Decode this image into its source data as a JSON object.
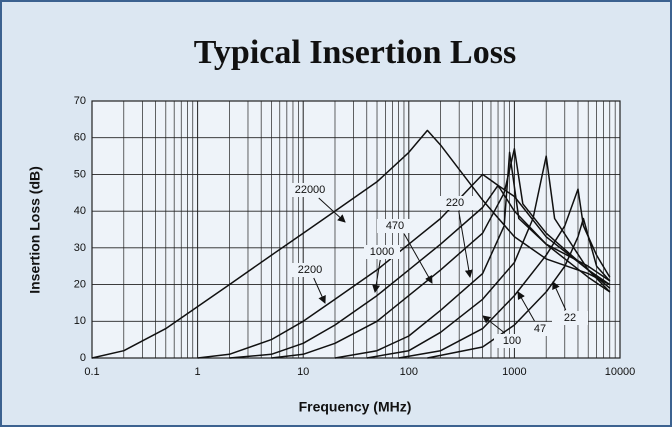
{
  "chart_data": {
    "type": "line",
    "title": "Typical Insertion Loss",
    "x_label": "Frequency (MHz)",
    "y_label": "Insertion Loss (dB)",
    "xscale": "log",
    "grid": true,
    "xlim": [
      0.1,
      10000
    ],
    "xticks": [
      0.1,
      1,
      10,
      100,
      1000,
      10000
    ],
    "ylim": [
      0,
      70
    ],
    "yticks": [
      0,
      10,
      20,
      30,
      40,
      50,
      60,
      70
    ],
    "series": [
      {
        "name": "22000",
        "color": "#111111",
        "x": [
          0.1,
          0.2,
          0.5,
          1,
          2,
          5,
          10,
          20,
          50,
          100,
          150,
          200,
          500,
          1000,
          2000,
          5000,
          8000
        ],
        "values": [
          0,
          2,
          8,
          14,
          20,
          28,
          34,
          40,
          48,
          56,
          62,
          58,
          43,
          33,
          27,
          23,
          20
        ]
      },
      {
        "name": "2200",
        "color": "#111111",
        "x": [
          1,
          2,
          5,
          10,
          20,
          50,
          100,
          200,
          500,
          700,
          1000,
          2000,
          5000,
          8000
        ],
        "values": [
          0,
          1,
          5,
          10,
          16,
          24,
          31,
          38,
          50,
          47,
          40,
          31,
          25,
          21
        ]
      },
      {
        "name": "1000",
        "color": "#111111",
        "x": [
          2,
          5,
          10,
          20,
          50,
          100,
          200,
          500,
          700,
          1000,
          2000,
          5000,
          8000
        ],
        "values": [
          0,
          1,
          4,
          9,
          17,
          24,
          31,
          41,
          47,
          44,
          33,
          24,
          20
        ]
      },
      {
        "name": "470",
        "color": "#111111",
        "x": [
          5,
          10,
          20,
          50,
          100,
          200,
          500,
          800,
          1000,
          1200,
          2000,
          5000,
          8000
        ],
        "values": [
          0,
          1,
          4,
          10,
          17,
          24,
          34,
          45,
          57,
          42,
          34,
          24,
          18
        ]
      },
      {
        "name": "220",
        "color": "#111111",
        "x": [
          20,
          50,
          100,
          200,
          500,
          800,
          900,
          1100,
          2000,
          5000,
          8000
        ],
        "values": [
          0,
          2,
          6,
          13,
          23,
          36,
          56,
          38,
          31,
          22,
          18
        ]
      },
      {
        "name": "100",
        "color": "#111111",
        "x": [
          40,
          100,
          200,
          500,
          1000,
          1500,
          2000,
          2400,
          5000,
          8000
        ],
        "values": [
          0,
          2,
          7,
          16,
          26,
          38,
          55,
          38,
          24,
          19
        ]
      },
      {
        "name": "47",
        "color": "#111111",
        "x": [
          80,
          200,
          500,
          1000,
          2000,
          3000,
          4000,
          4500,
          6000,
          8000
        ],
        "values": [
          0,
          2,
          8,
          17,
          28,
          36,
          46,
          36,
          28,
          22
        ]
      },
      {
        "name": "22",
        "color": "#111111",
        "x": [
          150,
          500,
          1000,
          2000,
          3000,
          4000,
          4500,
          6000,
          8000
        ],
        "values": [
          0,
          3,
          9,
          18,
          25,
          33,
          38,
          25,
          21
        ]
      }
    ]
  }
}
